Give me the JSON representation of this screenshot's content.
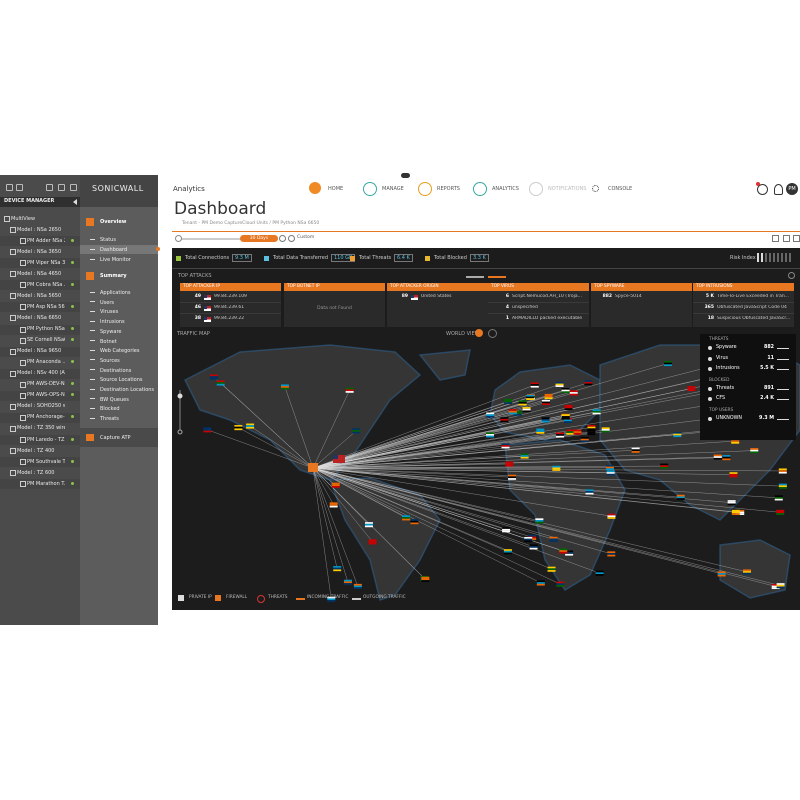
{
  "device_manager": {
    "title": "DEVICE MANAGER",
    "items": [
      "MultiView",
      "Model : NSa 2650",
      "PM Adder NSa 2650",
      "Model : NSa 3650",
      "PM Viper NSa 3...",
      "Model : NSa 4650",
      "PM Cobra NSa ...",
      "Model : NSa 5650",
      "PM Asp NSa 56...",
      "Model : NSa 6650",
      "PM Python NSa...",
      "SE Cornell NSa6650",
      "Model : NSa 9650",
      "PM Anaconda ...",
      "Model : NSv 400 (AWS)",
      "PM AWS-DEV-NS...",
      "PM AWS-OPS-NS...",
      "Model : SOHO250 wirele...",
      "PM Anchorage-...",
      "Model : TZ 350 wireless-...",
      "PM Laredo - TZ...",
      "Model : TZ 400",
      "PM Southvale T...",
      "Model : TZ 600",
      "PM Marathon T..."
    ]
  },
  "logo": "SONICWALL",
  "nav": {
    "overview": "Overview",
    "overview_items": [
      "Status",
      "Dashboard",
      "Live Monitor"
    ],
    "summary": "Summary",
    "summary_items": [
      "Applications",
      "Users",
      "Viruses",
      "Intrusions",
      "Spyware",
      "Botnet",
      "Web Categories",
      "Sources",
      "Destinations",
      "Source Locations",
      "Destination Locations",
      "BW Queues",
      "Blocked",
      "Threats"
    ],
    "capture": "Capture ATP"
  },
  "header": {
    "app": "Analytics",
    "tabs": [
      "HOME",
      "MANAGE",
      "REPORTS",
      "ANALYTICS",
      "NOTIFICATIONS",
      "CONSOLE"
    ],
    "user": "PM"
  },
  "page": {
    "title": "Dashboard",
    "breadcrumb": "Tenant - PM Demo CaptureCloud Units / PM Python NSa 6650",
    "range": "30 Days",
    "custom": "Custom"
  },
  "stats": [
    {
      "label": "Total Connections",
      "value": "9.3 M"
    },
    {
      "label": "Total Data Transferred",
      "value": "110 GB"
    },
    {
      "label": "Total Threats",
      "value": "6.4 K"
    },
    {
      "label": "Total Blocked",
      "value": "3.3 K"
    }
  ],
  "risk": "Risk Index",
  "top_attacks": {
    "title": "TOP ATTACKS",
    "panels": [
      {
        "title": "TOP ATTACKER IP",
        "rows": [
          {
            "count": "49",
            "text": "99.84.239.109"
          },
          {
            "count": "46",
            "text": "99.84.239.61"
          },
          {
            "count": "38",
            "text": "99.84.239.22"
          }
        ]
      },
      {
        "title": "TOP BOTNET IP",
        "empty": "Data not Found"
      },
      {
        "title": "TOP ATTACKER ORIGIN",
        "rows": [
          {
            "count": "89",
            "text": "United States"
          }
        ]
      },
      {
        "title": "TOP VIRUS",
        "rows": [
          {
            "count": "6",
            "text": "Script.Nemucod.AH_10 (Troja..."
          },
          {
            "count": "4",
            "text": "unspecified"
          },
          {
            "count": "1",
            "text": "ARMADILLO packed executable"
          }
        ]
      },
      {
        "title": "TOP SPYWARE",
        "rows": [
          {
            "count": "882",
            "text": "Spyce-5014"
          }
        ]
      },
      {
        "title": "TOP INTRUSIONS",
        "rows": [
          {
            "count": "5 K",
            "text": "Time-To-Live Exceeded in Tran..."
          },
          {
            "count": "365",
            "text": "Obfuscated JavaScript Code 04"
          },
          {
            "count": "18",
            "text": "Suspicious Obfuscated JavaScr..."
          }
        ]
      }
    ]
  },
  "traffic_map": {
    "title": "TRAFFIC MAP",
    "view": "WORLD VIEW",
    "side": [
      {
        "title": "THREATS",
        "rows": [
          {
            "name": "Spyware",
            "value": "882"
          },
          {
            "name": "Virus",
            "value": "11"
          },
          {
            "name": "Intrusions",
            "value": "5.5 K"
          }
        ]
      },
      {
        "title": "BLOCKED",
        "rows": [
          {
            "name": "Threats",
            "value": "891"
          },
          {
            "name": "CFS",
            "value": "2.4 K"
          }
        ]
      },
      {
        "title": "TOP USERS",
        "rows": [
          {
            "name": "UNKNOWN",
            "value": "9.3 M"
          }
        ]
      }
    ],
    "legend": [
      "PRIVATE IP",
      "FIREWALL",
      "THREATS",
      "INCOMING TRAFFIC",
      "OUTGOING TRAFFIC"
    ]
  }
}
